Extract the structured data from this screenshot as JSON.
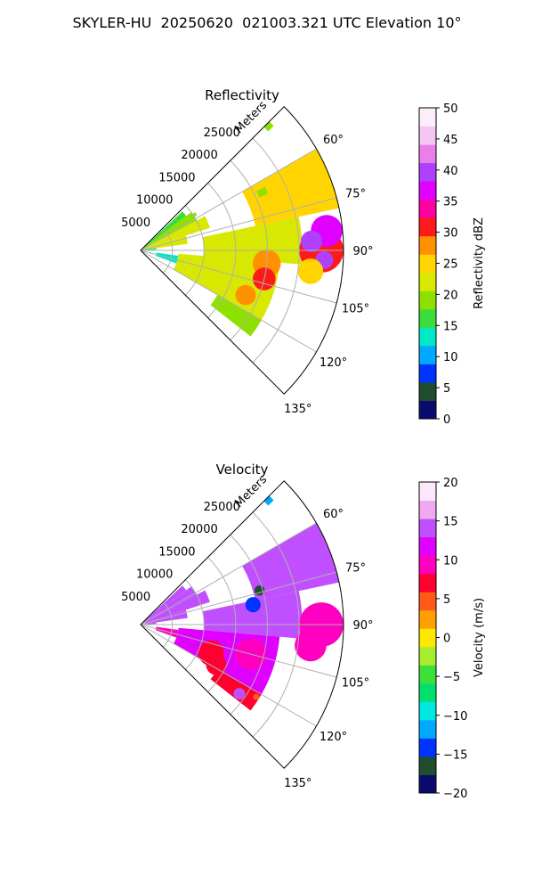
{
  "figure_title": "SKYLER-HU  20250620  021003.321 UTC Elevation 10°",
  "chart_data": [
    {
      "type": "heatmap",
      "projection": "polar-sector",
      "title": "Reflectivity",
      "radial_axis_label": "Meters",
      "radial_ticks": [
        5000,
        10000,
        15000,
        20000,
        25000
      ],
      "radial_tick_labels": [
        "5000",
        "10000",
        "15000",
        "20000",
        "25000"
      ],
      "rlim": [
        0,
        32000
      ],
      "theta_range_deg": [
        45,
        135
      ],
      "theta_ticks": [
        60,
        75,
        90,
        105,
        120,
        135
      ],
      "theta_tick_labels": [
        "60°",
        "75°",
        "90°",
        "105°",
        "120°",
        "135°"
      ],
      "grid": true,
      "colorbar": {
        "label": "Reflectivity dBZ",
        "range": [
          0,
          50
        ],
        "ticks": [
          0,
          5,
          10,
          15,
          20,
          25,
          30,
          35,
          40,
          45,
          50
        ],
        "tick_labels": [
          "0",
          "5",
          "10",
          "15",
          "20",
          "25",
          "30",
          "35",
          "40",
          "45",
          "50"
        ],
        "colors": [
          "#0b0b6e",
          "#1f4d2e",
          "#0033ff",
          "#00a8ff",
          "#00e8c8",
          "#3bdc3b",
          "#8ee000",
          "#d8e800",
          "#ffd400",
          "#ff9000",
          "#ff1a1a",
          "#ff00a0",
          "#e000ff",
          "#b040ff",
          "#e880e8",
          "#f4c6f4",
          "#fbeefb"
        ]
      },
      "sectors": [
        {
          "az": [
            47,
            53
          ],
          "r": [
            700,
            9000
          ],
          "value": 17
        },
        {
          "az": [
            53,
            62
          ],
          "r": [
            700,
            10000
          ],
          "value": 19
        },
        {
          "az": [
            62,
            72
          ],
          "r": [
            700,
            11500
          ],
          "value": 22
        },
        {
          "az": [
            72,
            82
          ],
          "r": [
            700,
            7500
          ],
          "value": 21
        },
        {
          "az": [
            55,
            58
          ],
          "r": [
            8000,
            10500
          ],
          "value": 20
        },
        {
          "az": [
            82,
            87
          ],
          "r": [
            700,
            2500
          ],
          "value": 14
        },
        {
          "az": [
            78,
            95
          ],
          "r": [
            10000,
            25500
          ],
          "value": 22
        },
        {
          "az": [
            60,
            78
          ],
          "r": [
            18500,
            32000
          ],
          "value": 24
        },
        {
          "az": [
            95,
            120
          ],
          "r": [
            6000,
            22000
          ],
          "value": 21
        },
        {
          "az": [
            120,
            128
          ],
          "r": [
            14000,
            22000
          ],
          "value": 20
        },
        {
          "az": [
            98,
            110
          ],
          "r": [
            2500,
            6000
          ],
          "value": 13
        },
        {
          "az": [
            63,
            66
          ],
          "r": [
            20500,
            22000
          ],
          "value": 20
        },
        {
          "az": [
            45,
            47
          ],
          "r": [
            27500,
            28700
          ],
          "value": 19
        }
      ],
      "cores": [
        {
          "az": 90,
          "r": 28500,
          "radius": 3500,
          "value": 30
        },
        {
          "az": 84,
          "r": 29500,
          "radius": 2500,
          "value": 36
        },
        {
          "az": 87,
          "r": 27000,
          "radius": 1700,
          "value": 41
        },
        {
          "az": 93,
          "r": 29000,
          "radius": 1400,
          "value": 40
        },
        {
          "az": 96,
          "r": 20000,
          "radius": 2200,
          "value": 28
        },
        {
          "az": 103,
          "r": 20000,
          "radius": 1800,
          "value": 32
        },
        {
          "az": 113,
          "r": 18000,
          "radius": 1600,
          "value": 27
        },
        {
          "az": 97,
          "r": 27000,
          "radius": 2000,
          "value": 26
        }
      ]
    },
    {
      "type": "heatmap",
      "projection": "polar-sector",
      "title": "Velocity",
      "radial_axis_label": "Meters",
      "radial_ticks": [
        5000,
        10000,
        15000,
        20000,
        25000
      ],
      "radial_tick_labels": [
        "5000",
        "10000",
        "15000",
        "20000",
        "25000"
      ],
      "rlim": [
        0,
        32000
      ],
      "theta_range_deg": [
        45,
        135
      ],
      "theta_ticks": [
        60,
        75,
        90,
        105,
        120,
        135
      ],
      "theta_tick_labels": [
        "60°",
        "75°",
        "90°",
        "105°",
        "120°",
        "135°"
      ],
      "grid": true,
      "colorbar": {
        "label": "Velocity (m/s)",
        "range": [
          -20,
          20
        ],
        "ticks": [
          -20,
          -15,
          -10,
          -5,
          0,
          5,
          10,
          15,
          20
        ],
        "tick_labels": [
          "−20",
          "−15",
          "−10",
          "−5",
          "0",
          "5",
          "10",
          "15",
          "20"
        ],
        "colors": [
          "#0b0b6e",
          "#1f4d2e",
          "#0033ff",
          "#00a8ff",
          "#00e8e0",
          "#00e070",
          "#3be03b",
          "#a8ec30",
          "#ffe800",
          "#ffa000",
          "#ff5a1a",
          "#ff0030",
          "#ff00c0",
          "#e000ff",
          "#c050ff",
          "#f0a8f0",
          "#fbe8fb"
        ]
      },
      "sectors": [
        {
          "az": [
            47,
            53
          ],
          "r": [
            700,
            9000
          ],
          "value": 14
        },
        {
          "az": [
            53,
            62
          ],
          "r": [
            700,
            10000
          ],
          "value": 13
        },
        {
          "az": [
            62,
            72
          ],
          "r": [
            700,
            11500
          ],
          "value": 14
        },
        {
          "az": [
            72,
            82
          ],
          "r": [
            700,
            7500
          ],
          "value": 13
        },
        {
          "az": [
            82,
            87
          ],
          "r": [
            700,
            2500
          ],
          "value": 13
        },
        {
          "az": [
            78,
            95
          ],
          "r": [
            10000,
            25500
          ],
          "value": 14
        },
        {
          "az": [
            60,
            78
          ],
          "r": [
            18500,
            32000
          ],
          "value": 15
        },
        {
          "az": [
            95,
            120
          ],
          "r": [
            6000,
            22000
          ],
          "value": 12
        },
        {
          "az": [
            120,
            128
          ],
          "r": [
            14000,
            22000
          ],
          "value": 8
        },
        {
          "az": [
            98,
            110
          ],
          "r": [
            2500,
            6000
          ],
          "value": 9
        },
        {
          "az": [
            63,
            66
          ],
          "r": [
            20500,
            22000
          ],
          "value": 14
        },
        {
          "az": [
            45,
            47
          ],
          "r": [
            27500,
            28700
          ],
          "value": -12
        }
      ],
      "cores": [
        {
          "az": 90,
          "r": 28500,
          "radius": 3500,
          "value": 9
        },
        {
          "az": 97,
          "r": 27000,
          "radius": 2500,
          "value": 10
        },
        {
          "az": 105,
          "r": 18000,
          "radius": 2500,
          "value": 10
        },
        {
          "az": 112,
          "r": 12000,
          "radius": 2000,
          "value": 8
        },
        {
          "az": 118,
          "r": 13500,
          "radius": 1600,
          "value": 6
        },
        {
          "az": 80,
          "r": 18000,
          "radius": 1200,
          "value": -13
        },
        {
          "az": 74,
          "r": 19500,
          "radius": 800,
          "value": -16
        },
        {
          "az": 125,
          "r": 19000,
          "radius": 900,
          "value": 15
        },
        {
          "az": 122,
          "r": 21500,
          "radius": 500,
          "value": 5
        }
      ]
    }
  ]
}
